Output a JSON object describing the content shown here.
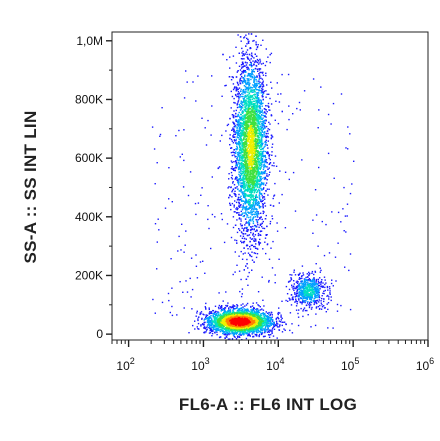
{
  "chart_data": {
    "type": "scatter",
    "style": "flow-cytometry density dot plot",
    "title": "",
    "xlabel": "FL6-A :: FL6 INT LOG",
    "ylabel": "SS-A :: SS INT LIN",
    "x_scale": "log",
    "y_scale": "linear",
    "xlim": [
      60,
      1000000
    ],
    "ylim": [
      -20000,
      1030000
    ],
    "x_ticks": [
      {
        "value": 100,
        "base": "10",
        "exp": "2"
      },
      {
        "value": 1000,
        "base": "10",
        "exp": "3"
      },
      {
        "value": 10000,
        "base": "10",
        "exp": "4"
      },
      {
        "value": 100000,
        "base": "10",
        "exp": "5"
      },
      {
        "value": 1000000,
        "base": "10",
        "exp": "6"
      }
    ],
    "y_ticks": [
      {
        "value": 0,
        "label": "0"
      },
      {
        "value": 200000,
        "label": "200K"
      },
      {
        "value": 400000,
        "label": "400K"
      },
      {
        "value": 600000,
        "label": "600K"
      },
      {
        "value": 800000,
        "label": "800K"
      },
      {
        "value": 1000000,
        "label": "1,0M"
      }
    ],
    "grid": false,
    "legend": "none",
    "colormap": [
      "#1a1aff",
      "#00a0ff",
      "#00e0c0",
      "#40e040",
      "#f0f000",
      "#ff8000",
      "#ff0000"
    ],
    "populations": [
      {
        "x_center": 4200,
        "y_center": 640000,
        "x_log_sd": 0.11,
        "y_sd": 150000,
        "count": 3800,
        "peak_color": "green"
      },
      {
        "x_center": 3000,
        "y_center": 45000,
        "x_log_sd": 0.22,
        "y_sd": 22000,
        "count": 2600,
        "peak_color": "red"
      },
      {
        "x_center": 25000,
        "y_center": 150000,
        "x_log_sd": 0.11,
        "y_sd": 28000,
        "count": 600,
        "peak_color": "cyan"
      }
    ]
  }
}
